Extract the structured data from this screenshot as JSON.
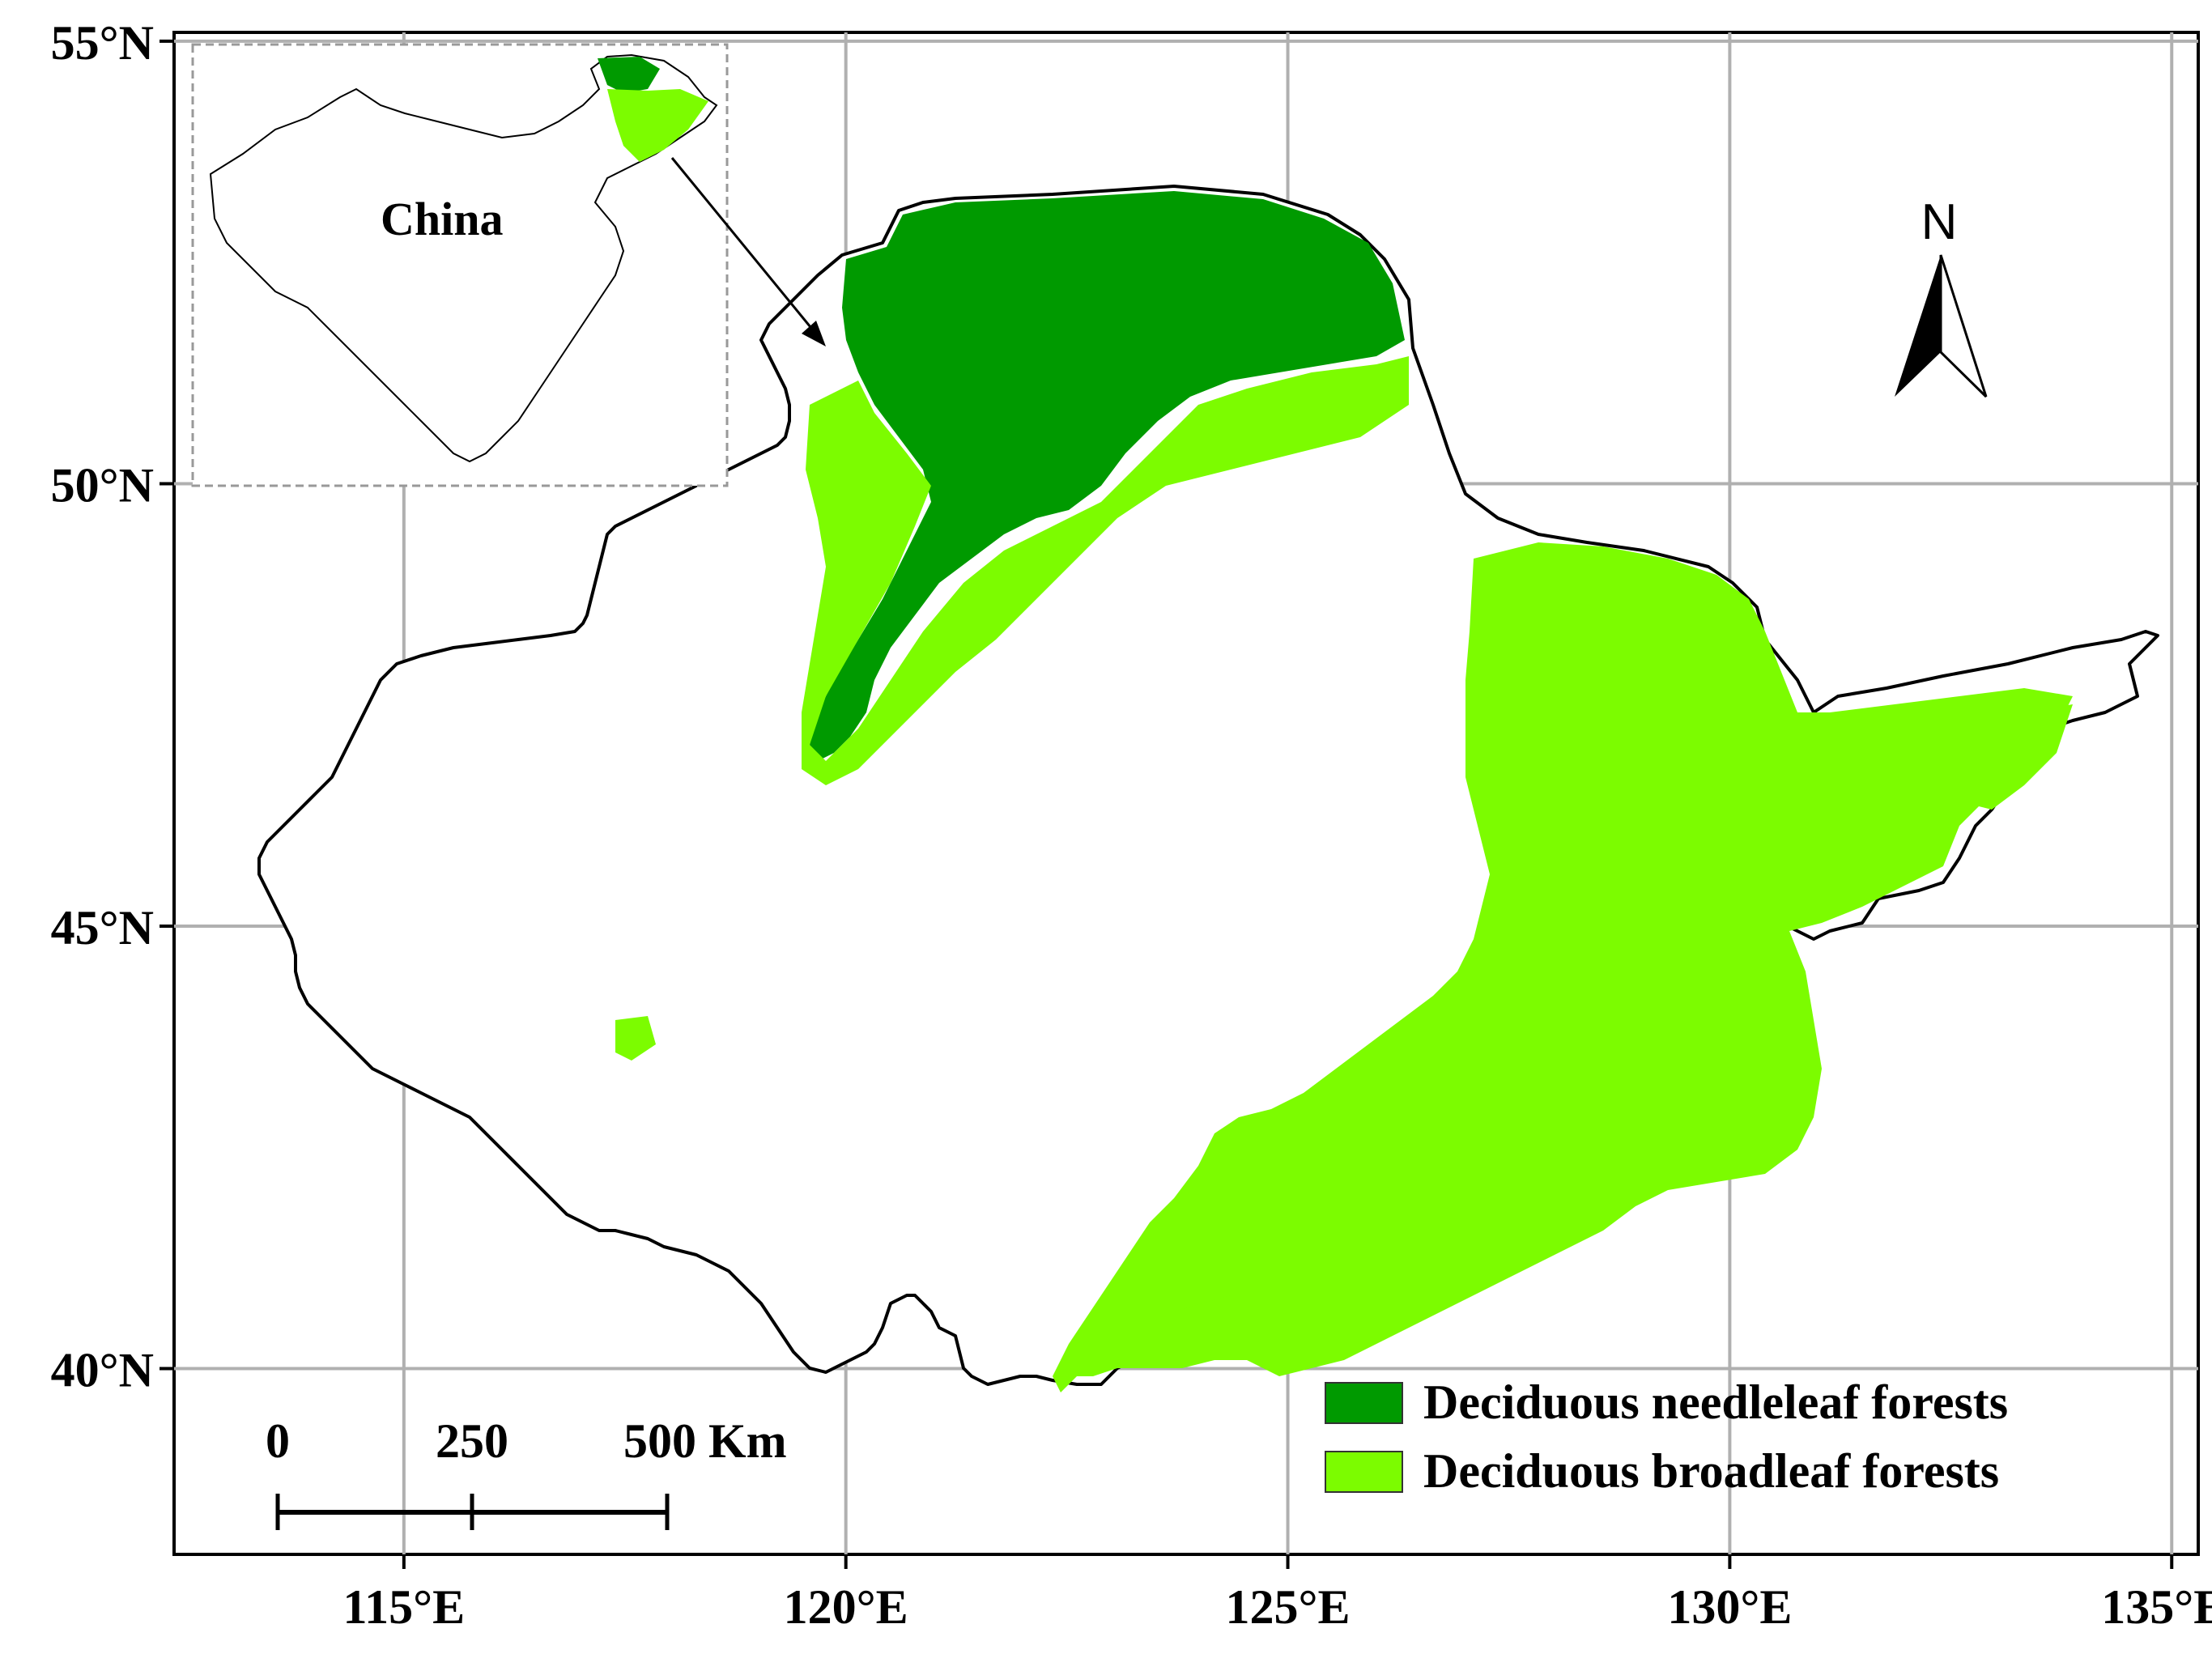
{
  "map": {
    "lon_range": [
      112.4,
      135.3
    ],
    "lat_range": [
      37.9,
      55.1
    ],
    "lon_ticks": [
      {
        "value": 115,
        "label": "115°E"
      },
      {
        "value": 120,
        "label": "120°E"
      },
      {
        "value": 125,
        "label": "125°E"
      },
      {
        "value": 130,
        "label": "130°E"
      },
      {
        "value": 135,
        "label": "135°E"
      }
    ],
    "lat_ticks": [
      {
        "value": 40,
        "label": "40°N"
      },
      {
        "value": 45,
        "label": "45°N"
      },
      {
        "value": 50,
        "label": "50°N"
      },
      {
        "value": 55,
        "label": "55°N"
      }
    ],
    "grid": true,
    "colors": {
      "needleleaf": "#009a00",
      "broadleaf": "#7cfc00",
      "boundary": "#000000",
      "grid": "#b0b0b0"
    }
  },
  "inset": {
    "label": "China"
  },
  "north_arrow": {
    "label": "N"
  },
  "scale_bar": {
    "ticks": [
      "0",
      "250",
      "500 Km"
    ]
  },
  "legend": {
    "placement": "bottom-right",
    "items": [
      {
        "label": "Deciduous needleleaf forests",
        "color": "#009a00"
      },
      {
        "label": "Deciduous broadleaf forests",
        "color": "#7cfc00"
      }
    ]
  }
}
